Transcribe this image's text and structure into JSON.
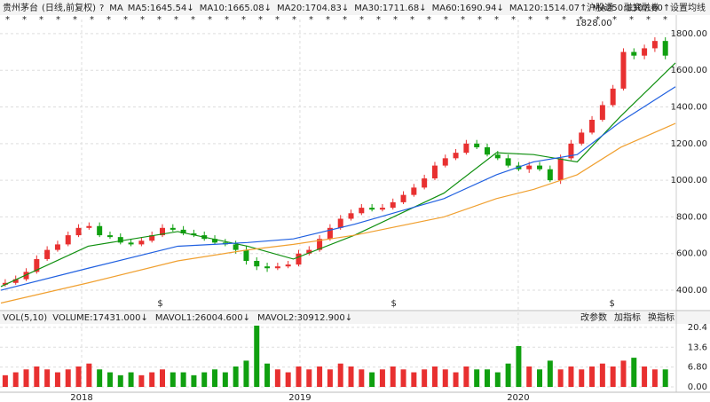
{
  "header": {
    "title": "贵州茅台",
    "subtitle": "(日线,前复权)",
    "help": "?",
    "ma_label": "MA",
    "legend": [
      {
        "label": "MA5:1645.54↓",
        "color": "#000000"
      },
      {
        "label": "MA10:1665.08↓",
        "color": "#e020e0"
      },
      {
        "label": "MA20:1704.83↓",
        "color": "#888888"
      },
      {
        "label": "MA30:1711.68↓",
        "color": "#a01010"
      },
      {
        "label": "MA60:1690.94↓",
        "color": "#109010"
      },
      {
        "label": "MA120:1514.07↑",
        "color": "#2060e0"
      },
      {
        "label": "MA250:1307.80↑",
        "color": "#f0a030"
      }
    ],
    "links": [
      "沪股通",
      "融资融券",
      "设置均线"
    ]
  },
  "chart_data": {
    "type": "candlestick",
    "x": [
      2017.65,
      2017.698,
      2017.746,
      2017.794,
      2017.842,
      2017.89,
      2017.938,
      2017.986,
      2018.034,
      2018.082,
      2018.13,
      2018.178,
      2018.226,
      2018.274,
      2018.322,
      2018.37,
      2018.418,
      2018.466,
      2018.514,
      2018.562,
      2018.61,
      2018.658,
      2018.706,
      2018.754,
      2018.802,
      2018.85,
      2018.898,
      2018.946,
      2018.994,
      2019.042,
      2019.09,
      2019.138,
      2019.186,
      2019.234,
      2019.282,
      2019.33,
      2019.378,
      2019.426,
      2019.474,
      2019.522,
      2019.57,
      2019.618,
      2019.666,
      2019.714,
      2019.762,
      2019.81,
      2019.858,
      2019.906,
      2019.954,
      2020.002,
      2020.05,
      2020.098,
      2020.146,
      2020.194,
      2020.242,
      2020.29,
      2020.338,
      2020.386,
      2020.434,
      2020.482,
      2020.53,
      2020.578,
      2020.626,
      2020.674
    ],
    "open": [
      430,
      440,
      460,
      500,
      570,
      620,
      650,
      700,
      740,
      750,
      700,
      690,
      660,
      650,
      670,
      700,
      740,
      730,
      710,
      700,
      680,
      660,
      650,
      620,
      560,
      530,
      520,
      530,
      540,
      600,
      620,
      680,
      740,
      790,
      820,
      850,
      840,
      850,
      880,
      920,
      960,
      1010,
      1080,
      1120,
      1150,
      1200,
      1180,
      1140,
      1120,
      1080,
      1060,
      1080,
      1060,
      1000,
      1120,
      1200,
      1260,
      1330,
      1410,
      1500,
      1700,
      1680,
      1720,
      1760
    ],
    "high": [
      460,
      480,
      520,
      590,
      640,
      670,
      720,
      760,
      770,
      770,
      720,
      710,
      680,
      690,
      720,
      760,
      760,
      750,
      730,
      720,
      700,
      680,
      670,
      640,
      580,
      550,
      550,
      560,
      620,
      640,
      700,
      760,
      810,
      840,
      870,
      870,
      870,
      900,
      940,
      980,
      1030,
      1100,
      1140,
      1170,
      1220,
      1220,
      1200,
      1160,
      1140,
      1100,
      1100,
      1100,
      1080,
      1140,
      1220,
      1280,
      1350,
      1430,
      1520,
      1720,
      1720,
      1740,
      1780,
      1780
    ],
    "low": [
      420,
      430,
      450,
      490,
      560,
      610,
      640,
      690,
      730,
      690,
      680,
      650,
      640,
      640,
      660,
      690,
      720,
      700,
      690,
      670,
      650,
      640,
      600,
      540,
      510,
      500,
      510,
      520,
      530,
      590,
      610,
      670,
      730,
      780,
      810,
      830,
      830,
      840,
      870,
      910,
      950,
      1000,
      1070,
      1110,
      1140,
      1170,
      1130,
      1110,
      1070,
      1050,
      1040,
      1050,
      990,
      980,
      1110,
      1190,
      1250,
      1320,
      1400,
      1490,
      1660,
      1660,
      1700,
      1660
    ],
    "close": [
      440,
      460,
      500,
      570,
      620,
      650,
      700,
      740,
      750,
      700,
      690,
      660,
      650,
      670,
      700,
      740,
      730,
      710,
      700,
      680,
      660,
      650,
      620,
      560,
      530,
      520,
      530,
      540,
      600,
      620,
      680,
      740,
      790,
      820,
      850,
      840,
      850,
      880,
      920,
      960,
      1010,
      1080,
      1120,
      1150,
      1200,
      1180,
      1140,
      1120,
      1080,
      1060,
      1080,
      1060,
      1000,
      1120,
      1200,
      1260,
      1330,
      1410,
      1500,
      1700,
      1680,
      1720,
      1760,
      1680
    ],
    "up_color": "#e83030",
    "down_color": "#10a010",
    "series": [
      {
        "name": "MA60",
        "color": "#109010",
        "x": [
          2017.63,
          2018.03,
          2018.44,
          2018.76,
          2018.97,
          2019.25,
          2019.66,
          2019.9,
          2020.07,
          2020.27,
          2020.47,
          2020.72
        ],
        "values": [
          420,
          640,
          720,
          640,
          570,
          700,
          930,
          1150,
          1140,
          1100,
          1350,
          1640
        ]
      },
      {
        "name": "MA120",
        "color": "#2060e0",
        "x": [
          2017.63,
          2018.03,
          2018.44,
          2018.76,
          2018.97,
          2019.25,
          2019.66,
          2019.9,
          2020.07,
          2020.27,
          2020.47,
          2020.72
        ],
        "values": [
          400,
          520,
          640,
          660,
          680,
          760,
          900,
          1030,
          1100,
          1140,
          1320,
          1510
        ]
      },
      {
        "name": "MA250",
        "color": "#f0a030",
        "x": [
          2017.63,
          2018.03,
          2018.44,
          2018.76,
          2018.97,
          2019.25,
          2019.66,
          2019.9,
          2020.07,
          2020.27,
          2020.47,
          2020.72
        ],
        "values": [
          330,
          440,
          560,
          620,
          650,
          700,
          800,
          900,
          950,
          1030,
          1180,
          1310
        ]
      }
    ],
    "xlim": [
      2017.626,
      2020.724
    ],
    "ylim": [
      313,
      1877
    ],
    "yticks": [
      {
        "value": 400,
        "label": "400.00"
      },
      {
        "value": 600,
        "label": "600.00"
      },
      {
        "value": 800,
        "label": "800.00"
      },
      {
        "value": 1000,
        "label": "1000.00"
      },
      {
        "value": 1200,
        "label": "1200.00"
      },
      {
        "value": 1400,
        "label": "1400.00"
      },
      {
        "value": 1600,
        "label": "1600.00"
      },
      {
        "value": 1800,
        "label": "1800.00"
      }
    ],
    "xticks": [
      2018,
      2019,
      2020
    ],
    "grid": true,
    "annotations": [
      {
        "text": "1828.00",
        "x": 2020.43,
        "y": 1828
      }
    ],
    "dividends": [
      {
        "text": "$",
        "x": 2018.36
      },
      {
        "text": "$",
        "x": 2019.43
      },
      {
        "text": "$",
        "x": 2020.43
      }
    ],
    "volume": {
      "title": "VOL(5,10)",
      "legend": [
        {
          "label": "VOLUME:17431.000↓",
          "color": "#000000"
        },
        {
          "label": "MAVOL1:26004.600↓",
          "color": "#e020e0"
        },
        {
          "label": "MAVOL2:30912.900↓",
          "color": "#888888"
        }
      ],
      "links": [
        "改参数",
        "加指标",
        "换指标"
      ],
      "values": [
        4,
        5,
        6,
        7,
        6,
        5,
        6,
        7,
        8,
        6,
        5,
        4,
        5,
        4,
        5,
        6,
        5,
        5,
        4,
        5,
        6,
        5,
        7,
        9,
        21,
        8,
        6,
        5,
        7,
        6,
        7,
        6,
        8,
        7,
        6,
        5,
        6,
        7,
        6,
        5,
        6,
        7,
        6,
        5,
        7,
        6,
        6,
        5,
        8,
        14,
        7,
        6,
        9,
        6,
        7,
        6,
        7,
        8,
        7,
        9,
        10,
        7,
        6,
        6
      ],
      "ylim": [
        0,
        22.5
      ],
      "yticks": [
        {
          "value": 0,
          "label": "0.00"
        },
        {
          "value": 6.8,
          "label": "6.80"
        },
        13.6,
        20.4
      ]
    }
  }
}
